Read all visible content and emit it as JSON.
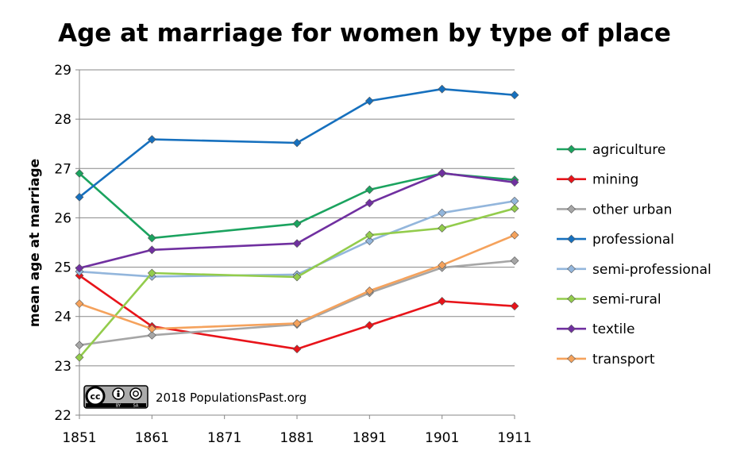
{
  "chart_data": {
    "type": "line",
    "title": "Age at marriage for women by type of place",
    "ylabel": "mean age at marriage",
    "xlabel": "",
    "x_ticks": [
      1851,
      1861,
      1871,
      1881,
      1891,
      1901,
      1911
    ],
    "xlim": [
      1851,
      1911
    ],
    "ylim": [
      22,
      29
    ],
    "y_ticks": [
      22,
      23,
      24,
      25,
      26,
      27,
      28,
      29
    ],
    "grid": "horizontal",
    "legend_position": "right",
    "x": [
      1851,
      1861,
      1881,
      1891,
      1901,
      1911
    ],
    "series": [
      {
        "name": "agriculture",
        "color": "#1ba35f",
        "values": [
          26.9,
          25.59,
          25.88,
          26.57,
          26.9,
          26.77
        ]
      },
      {
        "name": "mining",
        "color": "#e8141a",
        "values": [
          24.83,
          23.8,
          23.34,
          23.82,
          24.31,
          24.21
        ]
      },
      {
        "name": "other urban",
        "color": "#a6a6a6",
        "values": [
          23.42,
          23.62,
          23.84,
          24.48,
          24.99,
          25.13
        ]
      },
      {
        "name": "professional",
        "color": "#1670be",
        "values": [
          26.42,
          27.59,
          27.52,
          28.37,
          28.61,
          28.49
        ]
      },
      {
        "name": "semi-professional",
        "color": "#93b6dc",
        "values": [
          24.91,
          24.81,
          24.85,
          25.53,
          26.1,
          26.34
        ]
      },
      {
        "name": "semi-rural",
        "color": "#93cc4c",
        "values": [
          23.17,
          24.88,
          24.8,
          25.65,
          25.79,
          26.19
        ]
      },
      {
        "name": "textile",
        "color": "#7030a0",
        "values": [
          24.98,
          25.35,
          25.48,
          26.3,
          26.91,
          26.72
        ]
      },
      {
        "name": "transport",
        "color": "#f5a25c",
        "values": [
          24.26,
          23.75,
          23.86,
          24.52,
          25.04,
          25.65
        ]
      }
    ]
  },
  "credit": {
    "cc_text": "cc",
    "by_text": "BY",
    "sa_text": "SA",
    "text": "2018 PopulationsPast.org"
  }
}
